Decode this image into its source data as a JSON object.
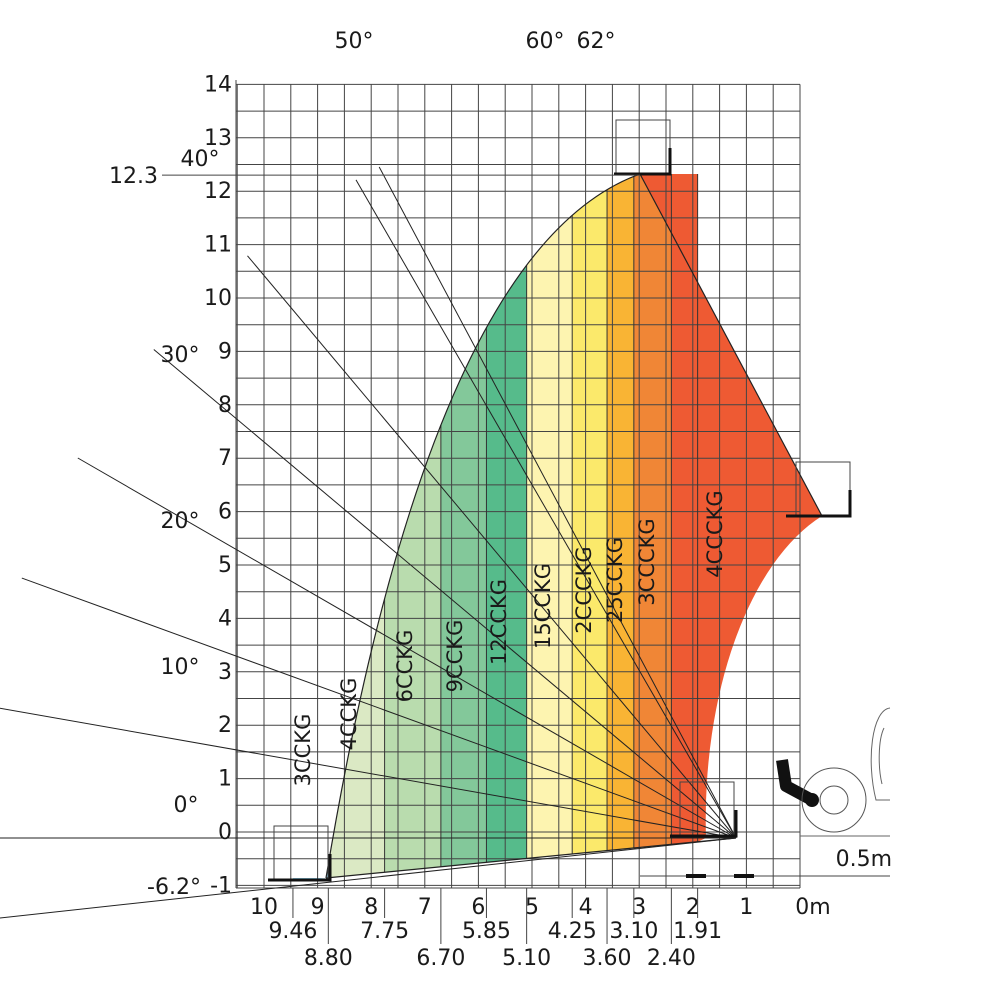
{
  "chart_data": {
    "type": "load-chart",
    "title": "",
    "xlabel": "",
    "ylabel": "",
    "x_ticks": [
      "10",
      "9",
      "8",
      "7",
      "6",
      "5",
      "4",
      "3",
      "2",
      "1",
      "0m"
    ],
    "y_ticks": [
      "14",
      "13",
      "12",
      "11",
      "10",
      "9",
      "8",
      "7",
      "6",
      "5",
      "4",
      "3",
      "2",
      "1",
      "0",
      "-1"
    ],
    "xlim": [
      0,
      10.5
    ],
    "ylim": [
      -1,
      14
    ],
    "max_height_label": "12.3",
    "max_height": 12.3,
    "scale_label": "0.5m",
    "sub_x_values": [
      {
        "text": "9.46",
        "x": 9.46,
        "row": 1
      },
      {
        "text": "8.80",
        "x": 8.8,
        "row": 2
      },
      {
        "text": "7.75",
        "x": 7.75,
        "row": 1
      },
      {
        "text": "6.70",
        "x": 6.7,
        "row": 2
      },
      {
        "text": "5.85",
        "x": 5.85,
        "row": 1
      },
      {
        "text": "5.10",
        "x": 5.1,
        "row": 2
      },
      {
        "text": "4.25",
        "x": 4.25,
        "row": 1
      },
      {
        "text": "3.60",
        "x": 3.6,
        "row": 2
      },
      {
        "text": "3.10",
        "x": 3.1,
        "row": 1
      },
      {
        "text": "2.40",
        "x": 2.4,
        "row": 2
      },
      {
        "text": "1.91",
        "x": 1.91,
        "row": 1
      }
    ],
    "boom_angles": [
      {
        "label": "62°",
        "deg": 62
      },
      {
        "label": "60°",
        "deg": 60
      },
      {
        "label": "50°",
        "deg": 50
      },
      {
        "label": "40°",
        "deg": 40
      },
      {
        "label": "30°",
        "deg": 30
      },
      {
        "label": "20°",
        "deg": 20
      },
      {
        "label": "10°",
        "deg": 10
      },
      {
        "label": "0°",
        "deg": 0
      },
      {
        "label": "-6.2°",
        "deg": -6.2
      }
    ],
    "load_zones": [
      {
        "label": "3CCKG",
        "load_kg": 3000,
        "x_from": 9.46,
        "x_to": 8.8,
        "color": "#8fd3f0"
      },
      {
        "label": "4CCKG",
        "load_kg": 4000,
        "x_from": 8.8,
        "x_to": 7.75,
        "color": "#dbe9c4"
      },
      {
        "label": "6CCKG",
        "load_kg": 6000,
        "x_from": 7.75,
        "x_to": 6.7,
        "color": "#b9dcae"
      },
      {
        "label": "9CCKG",
        "load_kg": 9000,
        "x_from": 6.7,
        "x_to": 5.85,
        "color": "#83c89a"
      },
      {
        "label": "12CCKG",
        "load_kg": 12000,
        "x_from": 5.85,
        "x_to": 5.1,
        "color": "#56bb8b"
      },
      {
        "label": "15CCKG",
        "load_kg": 15000,
        "x_from": 5.1,
        "x_to": 4.25,
        "color": "#fdf4b0"
      },
      {
        "label": "2CCCKG",
        "load_kg": 20000,
        "x_from": 4.25,
        "x_to": 3.6,
        "color": "#fbe96b"
      },
      {
        "label": "25CCKG",
        "load_kg": 25000,
        "x_from": 3.6,
        "x_to": 3.1,
        "color": "#f9b434"
      },
      {
        "label": "3CCCKG",
        "load_kg": 30000,
        "x_from": 3.1,
        "x_to": 2.4,
        "color": "#f08636"
      },
      {
        "label": "4CCCKG",
        "load_kg": 40000,
        "x_from": 2.4,
        "x_to": 1.91,
        "color": "#ee5a33"
      }
    ],
    "colors": {
      "grid": "#444444",
      "outline": "#222222"
    }
  }
}
